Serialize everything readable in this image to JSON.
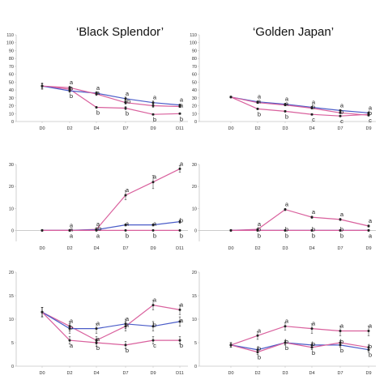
{
  "titles": {
    "left": "‘Black Splendor’",
    "right": "‘Golden Japan’"
  },
  "colors": {
    "series_a": "#d9609d",
    "series_b": "#4a5cc8",
    "axis": "#c4c4c4",
    "marker": "#222222"
  },
  "chart_data": [
    {
      "type": "line",
      "x": [
        "D0",
        "D2",
        "D4",
        "D7",
        "D9",
        "D11"
      ],
      "ylim": [
        0,
        110
      ],
      "yticks": [
        0,
        10,
        20,
        30,
        40,
        50,
        60,
        70,
        80,
        90,
        100,
        110
      ],
      "series": [
        {
          "values": [
            45,
            41,
            18,
            17,
            9,
            10
          ],
          "errors": [
            3,
            2,
            1,
            2,
            1,
            1
          ]
        },
        {
          "values": [
            45,
            39,
            36,
            29,
            24,
            21
          ],
          "errors": [
            4,
            2,
            2,
            2,
            2,
            1
          ]
        },
        {
          "values": [
            45,
            43,
            35,
            24,
            20,
            19
          ],
          "errors": [
            3,
            2,
            2,
            2,
            2,
            1
          ]
        }
      ],
      "annotations": [
        {
          "x": "D2",
          "labels": [
            "a",
            "a",
            "b"
          ]
        },
        {
          "x": "D4",
          "labels": [
            "a",
            "a",
            "b"
          ]
        },
        {
          "x": "D7",
          "labels": [
            "a",
            "ab",
            "b"
          ]
        },
        {
          "x": "D9",
          "labels": [
            "a",
            "b"
          ]
        },
        {
          "x": "D11",
          "labels": [
            "a",
            "a",
            "b"
          ]
        }
      ]
    },
    {
      "type": "line",
      "x": [
        "D0",
        "D2",
        "D3",
        "D4",
        "D7",
        "D9"
      ],
      "ylim": [
        0,
        110
      ],
      "yticks": [
        0,
        10,
        20,
        30,
        40,
        50,
        60,
        70,
        80,
        90,
        100,
        110
      ],
      "series": [
        {
          "values": [
            31,
            16,
            13,
            9,
            7,
            9
          ],
          "errors": [
            1,
            1,
            1,
            1,
            1,
            1
          ]
        },
        {
          "values": [
            31,
            25,
            22,
            18,
            14,
            11
          ],
          "errors": [
            1,
            1,
            1,
            1,
            1,
            1
          ]
        },
        {
          "values": [
            31,
            24,
            21,
            17,
            11,
            8
          ],
          "errors": [
            1,
            1,
            1,
            1,
            1,
            1
          ]
        }
      ],
      "annotations": [
        {
          "x": "D2",
          "labels": [
            "a",
            "a",
            "b"
          ]
        },
        {
          "x": "D3",
          "labels": [
            "a",
            "a",
            "b"
          ]
        },
        {
          "x": "D4",
          "labels": [
            "a",
            "b",
            "c"
          ]
        },
        {
          "x": "D7",
          "labels": [
            "a",
            "b",
            "c"
          ]
        },
        {
          "x": "D9",
          "labels": [
            "a",
            "b",
            "c"
          ]
        }
      ]
    },
    {
      "type": "line",
      "x": [
        "D0",
        "D2",
        "D4",
        "D7",
        "D9",
        "D11"
      ],
      "ylim": [
        -5,
        30
      ],
      "yticks": [
        0,
        10,
        20,
        30
      ],
      "series": [
        {
          "values": [
            0,
            0,
            0.5,
            16,
            22,
            28
          ],
          "errors": [
            0,
            0,
            0.3,
            2,
            3,
            1.5
          ]
        },
        {
          "values": [
            0,
            0,
            0.3,
            2.5,
            2.5,
            4
          ],
          "errors": [
            0,
            0,
            0.2,
            0.5,
            0.5,
            0.8
          ]
        },
        {
          "values": [
            0,
            0,
            0,
            0,
            0,
            0
          ],
          "errors": [
            0,
            0,
            0,
            0,
            0,
            0
          ]
        }
      ],
      "annotations": [
        {
          "x": "D2",
          "labels": [
            "a",
            "a",
            "a"
          ]
        },
        {
          "x": "D4",
          "labels": [
            "a",
            "ab",
            "a"
          ]
        },
        {
          "x": "D7",
          "labels": [
            "a",
            "a",
            "b"
          ]
        },
        {
          "x": "D9",
          "labels": [
            "a",
            "a",
            "b"
          ]
        },
        {
          "x": "D11",
          "labels": [
            "a",
            "b",
            "b"
          ]
        }
      ]
    },
    {
      "type": "line",
      "x": [
        "D0",
        "D2",
        "D3",
        "D4",
        "D7",
        "D9"
      ],
      "ylim": [
        -5,
        30
      ],
      "yticks": [
        0,
        10,
        20,
        30
      ],
      "series": [
        {
          "values": [
            0,
            0.5,
            9.5,
            6,
            5,
            2
          ],
          "errors": [
            0,
            0,
            0.5,
            0.5,
            0.5,
            0.5
          ]
        },
        {
          "values": [
            0,
            0,
            0,
            0,
            0,
            0
          ],
          "errors": [
            0,
            0,
            0,
            0,
            0,
            0
          ]
        },
        {
          "values": [
            0,
            0,
            0,
            0,
            0,
            0
          ],
          "errors": [
            0,
            0,
            0,
            0,
            0,
            0
          ]
        }
      ],
      "annotations": [
        {
          "x": "D2",
          "labels": [
            "a",
            "b",
            "b"
          ]
        },
        {
          "x": "D3",
          "labels": [
            "a",
            "b",
            "b"
          ]
        },
        {
          "x": "D4",
          "labels": [
            "a",
            "b",
            "b"
          ]
        },
        {
          "x": "D7",
          "labels": [
            "a",
            "b",
            "b"
          ]
        },
        {
          "x": "D9",
          "labels": [
            "a",
            "a"
          ]
        }
      ]
    },
    {
      "type": "line",
      "x": [
        "D0",
        "D2",
        "D4",
        "D7",
        "D9",
        "D11"
      ],
      "ylim": [
        0,
        20
      ],
      "yticks": [
        0,
        5,
        10,
        15,
        20
      ],
      "series": [
        {
          "values": [
            11.5,
            8.5,
            5.5,
            8.5,
            13,
            12
          ],
          "errors": [
            1,
            1,
            0.8,
            1,
            1,
            1
          ]
        },
        {
          "values": [
            11.5,
            8,
            8,
            9,
            8.5,
            9.5
          ],
          "errors": [
            1,
            1,
            1,
            1,
            1,
            1
          ]
        },
        {
          "values": [
            11.5,
            5.5,
            5,
            4.5,
            5.5,
            5.5
          ],
          "errors": [
            1,
            0.8,
            0.8,
            0.8,
            0.8,
            0.8
          ]
        }
      ],
      "annotations": [
        {
          "x": "D2",
          "labels": [
            "a",
            "b",
            "a"
          ]
        },
        {
          "x": "D4",
          "labels": [
            "a",
            "a",
            "b"
          ]
        },
        {
          "x": "D7",
          "labels": [
            "a",
            "a",
            "b"
          ]
        },
        {
          "x": "D9",
          "labels": [
            "a",
            "b",
            "c"
          ]
        },
        {
          "x": "D11",
          "labels": [
            "a",
            "a",
            "b"
          ]
        }
      ]
    },
    {
      "type": "line",
      "x": [
        "D0",
        "D2",
        "D3",
        "D4",
        "D7",
        "D9"
      ],
      "ylim": [
        0,
        20
      ],
      "yticks": [
        0,
        5,
        10,
        15,
        20
      ],
      "series": [
        {
          "values": [
            4.5,
            6.5,
            8.5,
            8,
            7.5,
            7.5
          ],
          "errors": [
            0.5,
            0.8,
            0.8,
            1,
            1,
            1
          ]
        },
        {
          "values": [
            4.5,
            3.5,
            5,
            4.5,
            4.5,
            3.5
          ],
          "errors": [
            0.5,
            0.5,
            0.5,
            0.5,
            0.5,
            0.5
          ]
        },
        {
          "values": [
            4.5,
            3,
            5,
            4,
            5,
            4
          ],
          "errors": [
            0.5,
            0.5,
            0.5,
            0.5,
            0.5,
            0.5
          ]
        }
      ],
      "annotations": [
        {
          "x": "D2",
          "labels": [
            "a",
            "b",
            "b"
          ]
        },
        {
          "x": "D3",
          "labels": [
            "a",
            "b",
            "b"
          ]
        },
        {
          "x": "D4",
          "labels": [
            "a",
            "b",
            "b"
          ]
        },
        {
          "x": "D7",
          "labels": [
            "a",
            "b",
            "b"
          ]
        },
        {
          "x": "D9",
          "labels": [
            "a",
            "b",
            "b"
          ]
        }
      ]
    }
  ]
}
